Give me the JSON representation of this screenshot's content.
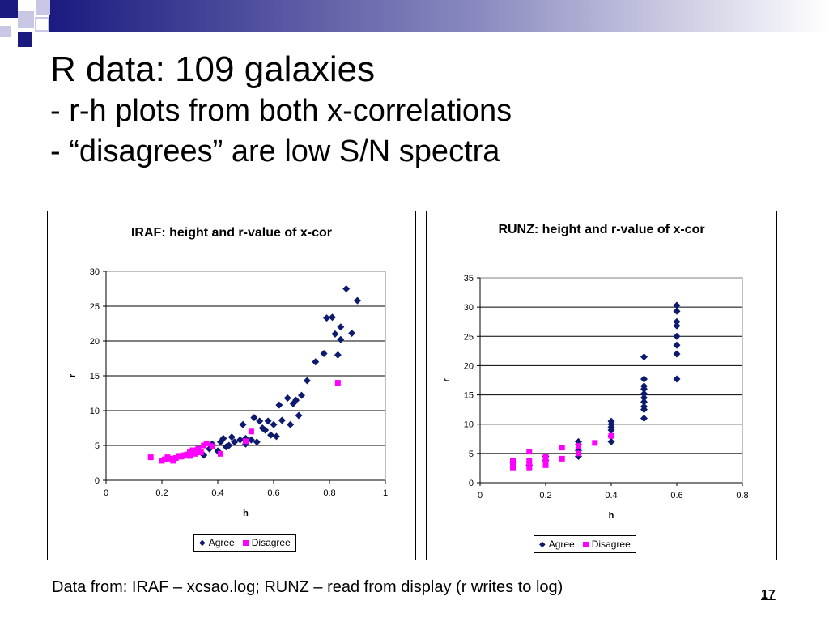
{
  "slide": {
    "title": "R data: 109 galaxies",
    "subtitle_lines": [
      "- r-h plots from both x-correlations",
      "- “disagrees” are low S/N spectra"
    ],
    "footer": "Data from: IRAF – xcsao.log; RUNZ – read from display (r writes to log)",
    "page_number": "17",
    "colors": {
      "agree": "#0d1a6e",
      "disagree": "#ff00ff",
      "deco_dark": "#1a1a80",
      "deco_light": "#c8c8e6"
    }
  },
  "chart_data": [
    {
      "type": "scatter",
      "title": "IRAF: height and r-value of x-cor",
      "xlabel": "h",
      "ylabel": "r",
      "xlim": [
        0,
        1
      ],
      "ylim": [
        0,
        30
      ],
      "xticks": [
        0,
        0.2,
        0.4,
        0.6,
        0.8,
        1
      ],
      "xtick_labels": [
        "0",
        "0.2",
        "0.4",
        "0.6",
        "0.8",
        "1"
      ],
      "yticks": [
        0,
        5,
        10,
        15,
        20,
        25,
        30
      ],
      "ytick_labels": [
        "0",
        "5",
        "10",
        "15",
        "20",
        "25",
        "30"
      ],
      "grid": "horizontal",
      "legend_position": "bottom",
      "series": [
        {
          "name": "Agree",
          "marker": "diamond",
          "color": "#0d1a6e",
          "points": [
            [
              0.35,
              3.6
            ],
            [
              0.37,
              4.5
            ],
            [
              0.38,
              5.2
            ],
            [
              0.4,
              4.2
            ],
            [
              0.41,
              5.5
            ],
            [
              0.42,
              6.0
            ],
            [
              0.43,
              4.8
            ],
            [
              0.44,
              5.0
            ],
            [
              0.45,
              6.2
            ],
            [
              0.46,
              5.5
            ],
            [
              0.48,
              5.8
            ],
            [
              0.49,
              8.0
            ],
            [
              0.5,
              6.0
            ],
            [
              0.5,
              5.2
            ],
            [
              0.52,
              5.8
            ],
            [
              0.53,
              9.0
            ],
            [
              0.54,
              5.5
            ],
            [
              0.55,
              8.5
            ],
            [
              0.56,
              7.5
            ],
            [
              0.57,
              7.2
            ],
            [
              0.58,
              8.5
            ],
            [
              0.59,
              6.5
            ],
            [
              0.6,
              8.0
            ],
            [
              0.61,
              6.3
            ],
            [
              0.62,
              10.8
            ],
            [
              0.63,
              8.6
            ],
            [
              0.65,
              11.8
            ],
            [
              0.66,
              8.0
            ],
            [
              0.67,
              11.0
            ],
            [
              0.68,
              11.5
            ],
            [
              0.69,
              9.3
            ],
            [
              0.7,
              12.2
            ],
            [
              0.72,
              14.3
            ],
            [
              0.75,
              17.0
            ],
            [
              0.78,
              18.2
            ],
            [
              0.79,
              23.3
            ],
            [
              0.81,
              23.4
            ],
            [
              0.82,
              21.0
            ],
            [
              0.83,
              18.0
            ],
            [
              0.84,
              22.0
            ],
            [
              0.84,
              20.2
            ],
            [
              0.86,
              27.5
            ],
            [
              0.88,
              21.1
            ],
            [
              0.9,
              25.8
            ]
          ]
        },
        {
          "name": "Disagree",
          "marker": "square",
          "color": "#ff00ff",
          "points": [
            [
              0.16,
              3.3
            ],
            [
              0.2,
              2.8
            ],
            [
              0.21,
              3.0
            ],
            [
              0.22,
              3.3
            ],
            [
              0.23,
              3.1
            ],
            [
              0.24,
              2.8
            ],
            [
              0.25,
              3.2
            ],
            [
              0.26,
              3.5
            ],
            [
              0.27,
              3.4
            ],
            [
              0.28,
              3.6
            ],
            [
              0.29,
              3.7
            ],
            [
              0.3,
              3.5
            ],
            [
              0.3,
              4.0
            ],
            [
              0.31,
              4.3
            ],
            [
              0.32,
              3.8
            ],
            [
              0.33,
              4.5
            ],
            [
              0.34,
              4.0
            ],
            [
              0.35,
              5.0
            ],
            [
              0.36,
              5.3
            ],
            [
              0.38,
              4.9
            ],
            [
              0.41,
              3.8
            ],
            [
              0.5,
              5.6
            ],
            [
              0.52,
              7.0
            ],
            [
              0.83,
              14.0
            ]
          ]
        }
      ]
    },
    {
      "type": "scatter",
      "title": "RUNZ: height and r-value of x-cor",
      "xlabel": "h",
      "ylabel": "r",
      "xlim": [
        0,
        0.8
      ],
      "ylim": [
        0,
        35
      ],
      "xticks": [
        0,
        0.2,
        0.4,
        0.6,
        0.8
      ],
      "xtick_labels": [
        "0",
        "0.2",
        "0.4",
        "0.6",
        "0.8"
      ],
      "yticks": [
        0,
        5,
        10,
        15,
        20,
        25,
        30,
        35
      ],
      "ytick_labels": [
        "0",
        "5",
        "10",
        "15",
        "20",
        "25",
        "30",
        "35"
      ],
      "grid": "horizontal",
      "legend_position": "bottom",
      "series": [
        {
          "name": "Agree",
          "marker": "diamond",
          "color": "#0d1a6e",
          "points": [
            [
              0.1,
              3.5
            ],
            [
              0.15,
              3.0
            ],
            [
              0.2,
              3.8
            ],
            [
              0.2,
              4.5
            ],
            [
              0.3,
              4.5
            ],
            [
              0.3,
              5.5
            ],
            [
              0.3,
              6.5
            ],
            [
              0.3,
              7.0
            ],
            [
              0.4,
              7.0
            ],
            [
              0.4,
              8.0
            ],
            [
              0.4,
              9.0
            ],
            [
              0.4,
              9.5
            ],
            [
              0.4,
              10.0
            ],
            [
              0.4,
              10.5
            ],
            [
              0.5,
              11.0
            ],
            [
              0.5,
              12.5
            ],
            [
              0.5,
              13.0
            ],
            [
              0.5,
              13.8
            ],
            [
              0.5,
              14.5
            ],
            [
              0.5,
              15.2
            ],
            [
              0.5,
              16.0
            ],
            [
              0.5,
              16.5
            ],
            [
              0.5,
              17.7
            ],
            [
              0.5,
              21.5
            ],
            [
              0.6,
              17.7
            ],
            [
              0.6,
              22.0
            ],
            [
              0.6,
              23.5
            ],
            [
              0.6,
              25.0
            ],
            [
              0.6,
              26.8
            ],
            [
              0.6,
              27.5
            ],
            [
              0.6,
              29.3
            ],
            [
              0.6,
              30.3
            ]
          ]
        },
        {
          "name": "Disagree",
          "marker": "square",
          "color": "#ff00ff",
          "points": [
            [
              0.1,
              2.6
            ],
            [
              0.1,
              3.0
            ],
            [
              0.1,
              3.8
            ],
            [
              0.15,
              2.6
            ],
            [
              0.15,
              3.2
            ],
            [
              0.15,
              3.8
            ],
            [
              0.15,
              5.3
            ],
            [
              0.2,
              3.0
            ],
            [
              0.2,
              3.6
            ],
            [
              0.2,
              4.5
            ],
            [
              0.25,
              4.1
            ],
            [
              0.25,
              6.0
            ],
            [
              0.3,
              5.0
            ],
            [
              0.3,
              6.3
            ],
            [
              0.35,
              6.8
            ],
            [
              0.4,
              8.0
            ]
          ]
        }
      ]
    }
  ]
}
